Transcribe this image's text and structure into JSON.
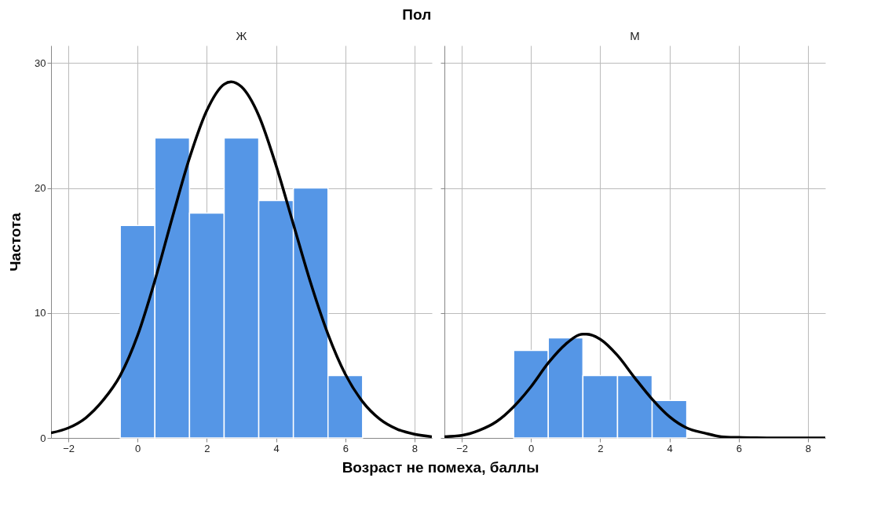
{
  "chart_data": [
    {
      "type": "histogram",
      "title": "Ж",
      "annotations": [
        "Пол"
      ],
      "xlabel": "Возраст не помеха, баллы",
      "ylabel": "Частота",
      "bins": [
        -0.5,
        0.5,
        1.5,
        2.5,
        3.5,
        4.5,
        5.5,
        6.5
      ],
      "xlim": [
        -2.5,
        8.5
      ],
      "xticks": [
        -2,
        0,
        2,
        4,
        6,
        8
      ],
      "ylim": [
        0,
        31.4
      ],
      "yticks": [
        0,
        10,
        20,
        30
      ],
      "grid": true,
      "series": [
        {
          "type": "histogram",
          "color": "#5596e6",
          "values": [
            17,
            24,
            18,
            24,
            19,
            20,
            5
          ]
        },
        {
          "type": "line",
          "color": "#000000",
          "x": [
            -2.5,
            -2,
            -1.5,
            -1,
            -0.5,
            0,
            0.5,
            1,
            1.5,
            2,
            2.5,
            2.7,
            3,
            3.5,
            4,
            4.5,
            5,
            5.5,
            6,
            6.5,
            7,
            7.5,
            8,
            8.5
          ],
          "values": [
            0.4,
            0.8,
            1.6,
            3.0,
            5.0,
            8.2,
            12.6,
            17.6,
            22.4,
            26.2,
            28.3,
            28.5,
            28.1,
            25.8,
            21.8,
            17.1,
            12.4,
            8.3,
            5.1,
            2.9,
            1.5,
            0.7,
            0.3,
            0.1
          ]
        }
      ]
    },
    {
      "type": "histogram",
      "title": "М",
      "tick_labels": "x",
      "bins": [
        -0.5,
        0.5,
        1.5,
        2.5,
        3.5,
        4.5
      ],
      "xlim": [
        -2.5,
        8.5
      ],
      "xticks": [
        -2,
        0,
        2,
        4,
        6,
        8
      ],
      "ylim": [
        0,
        31.4
      ],
      "yticks": [
        0,
        10,
        20,
        30
      ],
      "grid": true,
      "series": [
        {
          "type": "histogram",
          "color": "#5596e6",
          "values": [
            7,
            8,
            5,
            5,
            3
          ]
        },
        {
          "type": "line",
          "color": "#000000",
          "x": [
            -2.5,
            -2,
            -1.5,
            -1,
            -0.5,
            0,
            0.5,
            1,
            1.5,
            1.6,
            2,
            2.5,
            3,
            3.5,
            4,
            4.5,
            5,
            5.5,
            6,
            6.5,
            7,
            8.5
          ],
          "values": [
            0.1,
            0.2,
            0.6,
            1.3,
            2.5,
            4.1,
            6.0,
            7.5,
            8.3,
            8.3,
            7.9,
            6.6,
            4.8,
            3.1,
            1.7,
            0.8,
            0.4,
            0.1,
            0.04,
            0.01,
            0,
            0
          ]
        }
      ]
    }
  ]
}
